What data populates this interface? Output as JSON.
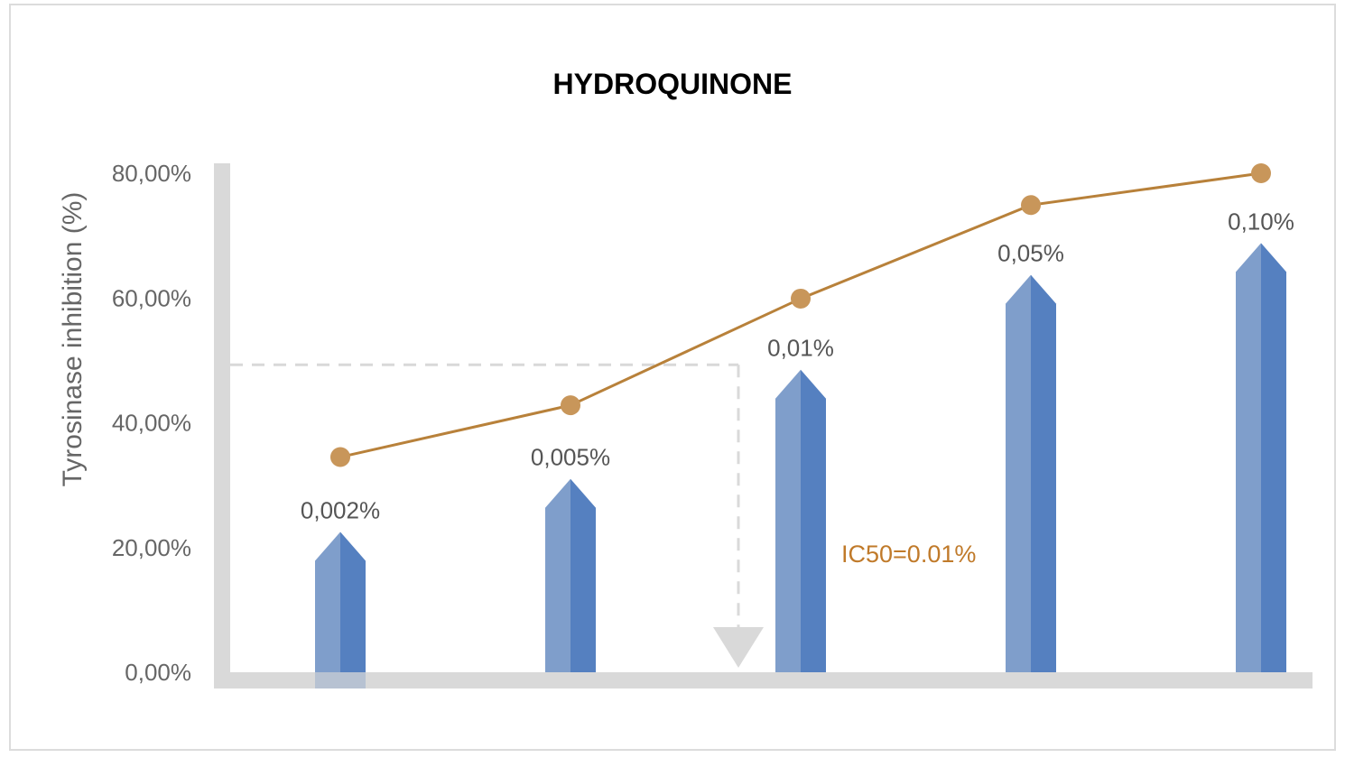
{
  "chart_data": {
    "type": "bar",
    "title": "HYDROQUINONE",
    "ylabel": "Tyrosinase inhibition (%)",
    "xlabel": "",
    "ylim": [
      0,
      80
    ],
    "yticks": [
      "0,00%",
      "20,00%",
      "40,00%",
      "60,00%",
      "80,00%"
    ],
    "ytick_values": [
      0,
      20,
      40,
      60,
      80
    ],
    "categories": [
      "0,002%",
      "0,005%",
      "0,01%",
      "0,05%",
      "0,10%"
    ],
    "bar_values": [
      22.5,
      31,
      48.5,
      63.7,
      68.8
    ],
    "line_values": [
      34.5,
      42.8,
      59.9,
      74.9,
      80.0
    ],
    "data_labels": [
      "0,002%",
      "0,005%",
      "0,01%",
      "0,05%",
      "0,10%"
    ],
    "annotation": "IC50=0.01%",
    "ic50_level": 49.3,
    "grid": false,
    "colors": {
      "bar_light": "#7f9ecb",
      "bar_dark": "#5580c0",
      "line": "#b8813a",
      "marker": "#c8965a",
      "axis": "#d9d9d9",
      "guide": "#d9d9d9",
      "annotation": "#c07a2a"
    }
  }
}
